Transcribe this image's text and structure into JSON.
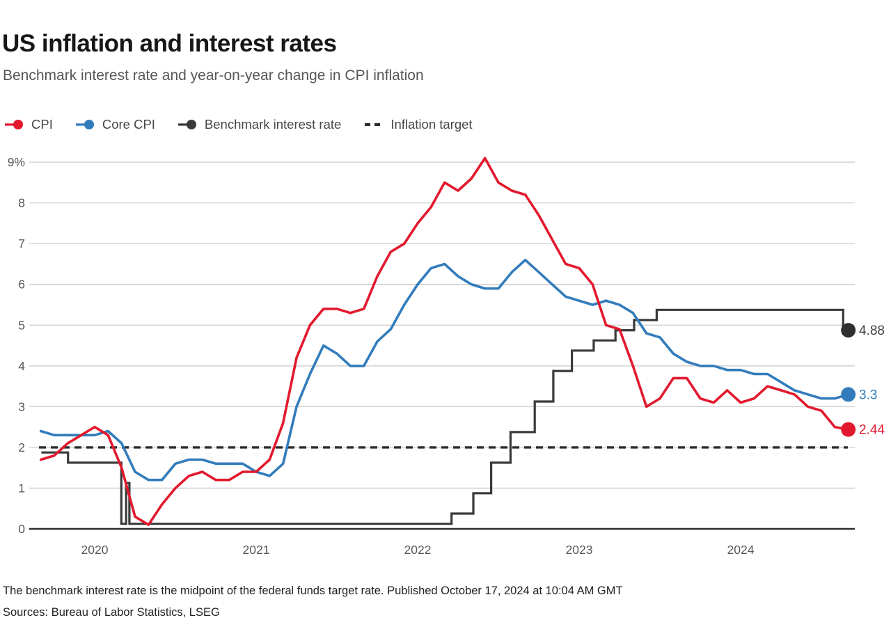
{
  "header": {
    "title": "US inflation and interest rates",
    "subtitle": "Benchmark interest rate and year-on-year change in CPI inflation"
  },
  "legend": [
    {
      "label": "CPI",
      "color": "#e2192e",
      "marker": "line-dot",
      "slug": "cpi"
    },
    {
      "label": "Core CPI",
      "color": "#327cbb",
      "marker": "line-dot",
      "slug": "core-cpi"
    },
    {
      "label": "Benchmark interest rate",
      "color": "#3a3a3a",
      "marker": "line-dot",
      "slug": "benchmark-rate"
    },
    {
      "label": "Inflation target",
      "color": "#2d2d2d",
      "marker": "dashes",
      "slug": "inflation-target"
    }
  ],
  "chart_data": {
    "type": "line",
    "title": "US inflation and interest rates",
    "subtitle": "Benchmark interest rate and year-on-year change in CPI inflation",
    "ylim": [
      0,
      9
    ],
    "grid": true,
    "y_ticks": [
      {
        "label": "9%",
        "value": 9
      },
      {
        "label": "8",
        "value": 8
      },
      {
        "label": "7",
        "value": 7
      },
      {
        "label": "6",
        "value": 6
      },
      {
        "label": "5",
        "value": 5
      },
      {
        "label": "4",
        "value": 4
      },
      {
        "label": "3",
        "value": 3
      },
      {
        "label": "2",
        "value": 2
      },
      {
        "label": "1",
        "value": 1
      },
      {
        "label": "0",
        "value": 0
      }
    ],
    "x_ticks": [
      {
        "label": "2020",
        "year": 2020
      },
      {
        "label": "2021",
        "year": 2021
      },
      {
        "label": "2022",
        "year": 2022
      },
      {
        "label": "2023",
        "year": 2023
      },
      {
        "label": "2024",
        "year": 2024
      }
    ],
    "series": [
      {
        "name": "CPI",
        "slug": "cpi",
        "kind": "monthly",
        "color": "#e2192e",
        "start_year": 2019,
        "start_month": 9,
        "end_label": "2.44",
        "end_value": 2.44,
        "values": [
          1.7,
          1.8,
          2.1,
          2.3,
          2.5,
          2.3,
          1.5,
          0.3,
          0.1,
          0.6,
          1.0,
          1.3,
          1.4,
          1.2,
          1.2,
          1.4,
          1.4,
          1.7,
          2.6,
          4.2,
          5.0,
          5.4,
          5.4,
          5.3,
          5.4,
          6.2,
          6.8,
          7.0,
          7.5,
          7.9,
          8.5,
          8.3,
          8.6,
          9.1,
          8.5,
          8.3,
          8.2,
          7.7,
          7.1,
          6.5,
          6.4,
          6.0,
          5.0,
          4.9,
          4.0,
          3.0,
          3.2,
          3.7,
          3.7,
          3.2,
          3.1,
          3.4,
          3.1,
          3.2,
          3.5,
          3.4,
          3.3,
          3.0,
          2.9,
          2.5,
          2.44
        ]
      },
      {
        "name": "Core CPI",
        "slug": "core-cpi",
        "kind": "monthly",
        "color": "#327cbb",
        "start_year": 2019,
        "start_month": 9,
        "end_label": "3.3",
        "end_value": 3.3,
        "values": [
          2.4,
          2.3,
          2.3,
          2.3,
          2.3,
          2.4,
          2.1,
          1.4,
          1.2,
          1.2,
          1.6,
          1.7,
          1.7,
          1.6,
          1.6,
          1.6,
          1.4,
          1.3,
          1.6,
          3.0,
          3.8,
          4.5,
          4.3,
          4.0,
          4.0,
          4.6,
          4.9,
          5.5,
          6.0,
          6.4,
          6.5,
          6.2,
          6.0,
          5.9,
          5.9,
          6.3,
          6.6,
          6.3,
          6.0,
          5.7,
          5.6,
          5.5,
          5.6,
          5.5,
          5.3,
          4.8,
          4.7,
          4.3,
          4.1,
          4.0,
          4.0,
          3.9,
          3.9,
          3.8,
          3.8,
          3.6,
          3.4,
          3.3,
          3.2,
          3.2,
          3.3
        ]
      },
      {
        "name": "Benchmark interest rate",
        "slug": "benchmark-rate",
        "kind": "step",
        "color": "#3a3a3a",
        "end_label": "4.88",
        "end_value": 4.875,
        "points": [
          [
            2019.67,
            1.875
          ],
          [
            2019.835,
            1.875
          ],
          [
            2019.835,
            1.625
          ],
          [
            2020.165,
            1.625
          ],
          [
            2020.165,
            0.125
          ],
          [
            2020.195,
            0.125
          ],
          [
            2020.195,
            1.125
          ],
          [
            2020.215,
            1.125
          ],
          [
            2020.215,
            0.125
          ],
          [
            2022.21,
            0.125
          ],
          [
            2022.21,
            0.375
          ],
          [
            2022.345,
            0.375
          ],
          [
            2022.345,
            0.875
          ],
          [
            2022.455,
            0.875
          ],
          [
            2022.455,
            1.625
          ],
          [
            2022.575,
            1.625
          ],
          [
            2022.575,
            2.375
          ],
          [
            2022.725,
            2.375
          ],
          [
            2022.725,
            3.125
          ],
          [
            2022.84,
            3.125
          ],
          [
            2022.84,
            3.875
          ],
          [
            2022.955,
            3.875
          ],
          [
            2022.955,
            4.375
          ],
          [
            2023.09,
            4.375
          ],
          [
            2023.09,
            4.625
          ],
          [
            2023.225,
            4.625
          ],
          [
            2023.225,
            4.875
          ],
          [
            2023.34,
            4.875
          ],
          [
            2023.34,
            5.125
          ],
          [
            2023.48,
            5.125
          ],
          [
            2023.48,
            5.375
          ],
          [
            2024.635,
            5.375
          ],
          [
            2024.635,
            4.875
          ],
          [
            2024.667,
            4.875
          ]
        ]
      },
      {
        "name": "Inflation target",
        "slug": "inflation-target",
        "kind": "target",
        "color": "#2d2d2d",
        "value": 2.0
      }
    ]
  },
  "footer": {
    "note": "The benchmark interest rate is the midpoint of the federal funds target rate. Published October 17, 2024 at 10:04 AM GMT",
    "sources": "Sources: Bureau of Labor Statistics, LSEG"
  }
}
